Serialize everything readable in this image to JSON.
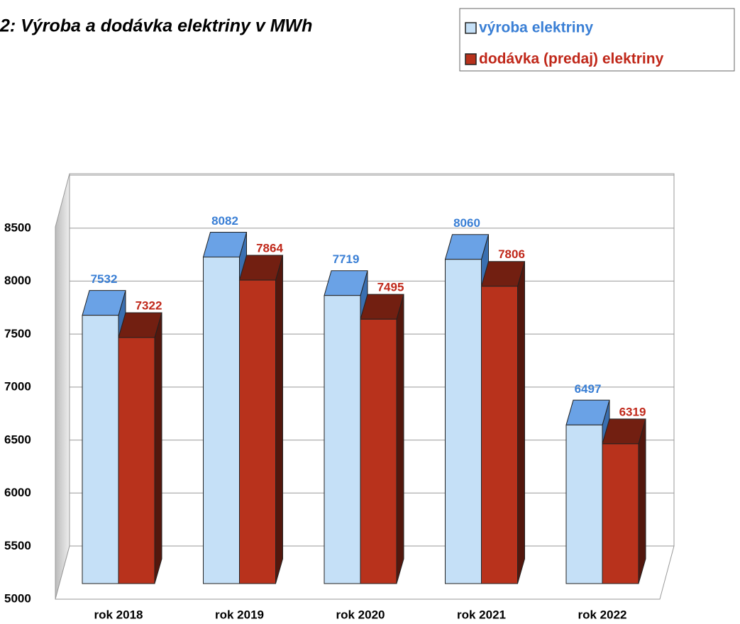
{
  "chart_data": {
    "type": "bar3d",
    "title": "2: Výroba a dodávka elektriny v MWh",
    "categories": [
      "rok 2018",
      "rok 2019",
      "rok 2020",
      "rok 2021",
      "rok 2022"
    ],
    "series": [
      {
        "name": "výroba elektriny",
        "color": "#c5e0f7",
        "label_color": "#3a7fd5",
        "values": [
          7532,
          8082,
          7719,
          8060,
          6497
        ]
      },
      {
        "name": "dodávka (predaj) elektriny",
        "color": "#b8321c",
        "label_color": "#c0281a",
        "values": [
          7322,
          7864,
          7495,
          7806,
          6319
        ]
      }
    ],
    "ylim": [
      5000,
      8500
    ],
    "yticks": [
      5000,
      5500,
      6000,
      6500,
      7000,
      7500,
      8000,
      8500
    ],
    "grid": true,
    "legend": "top-right"
  }
}
